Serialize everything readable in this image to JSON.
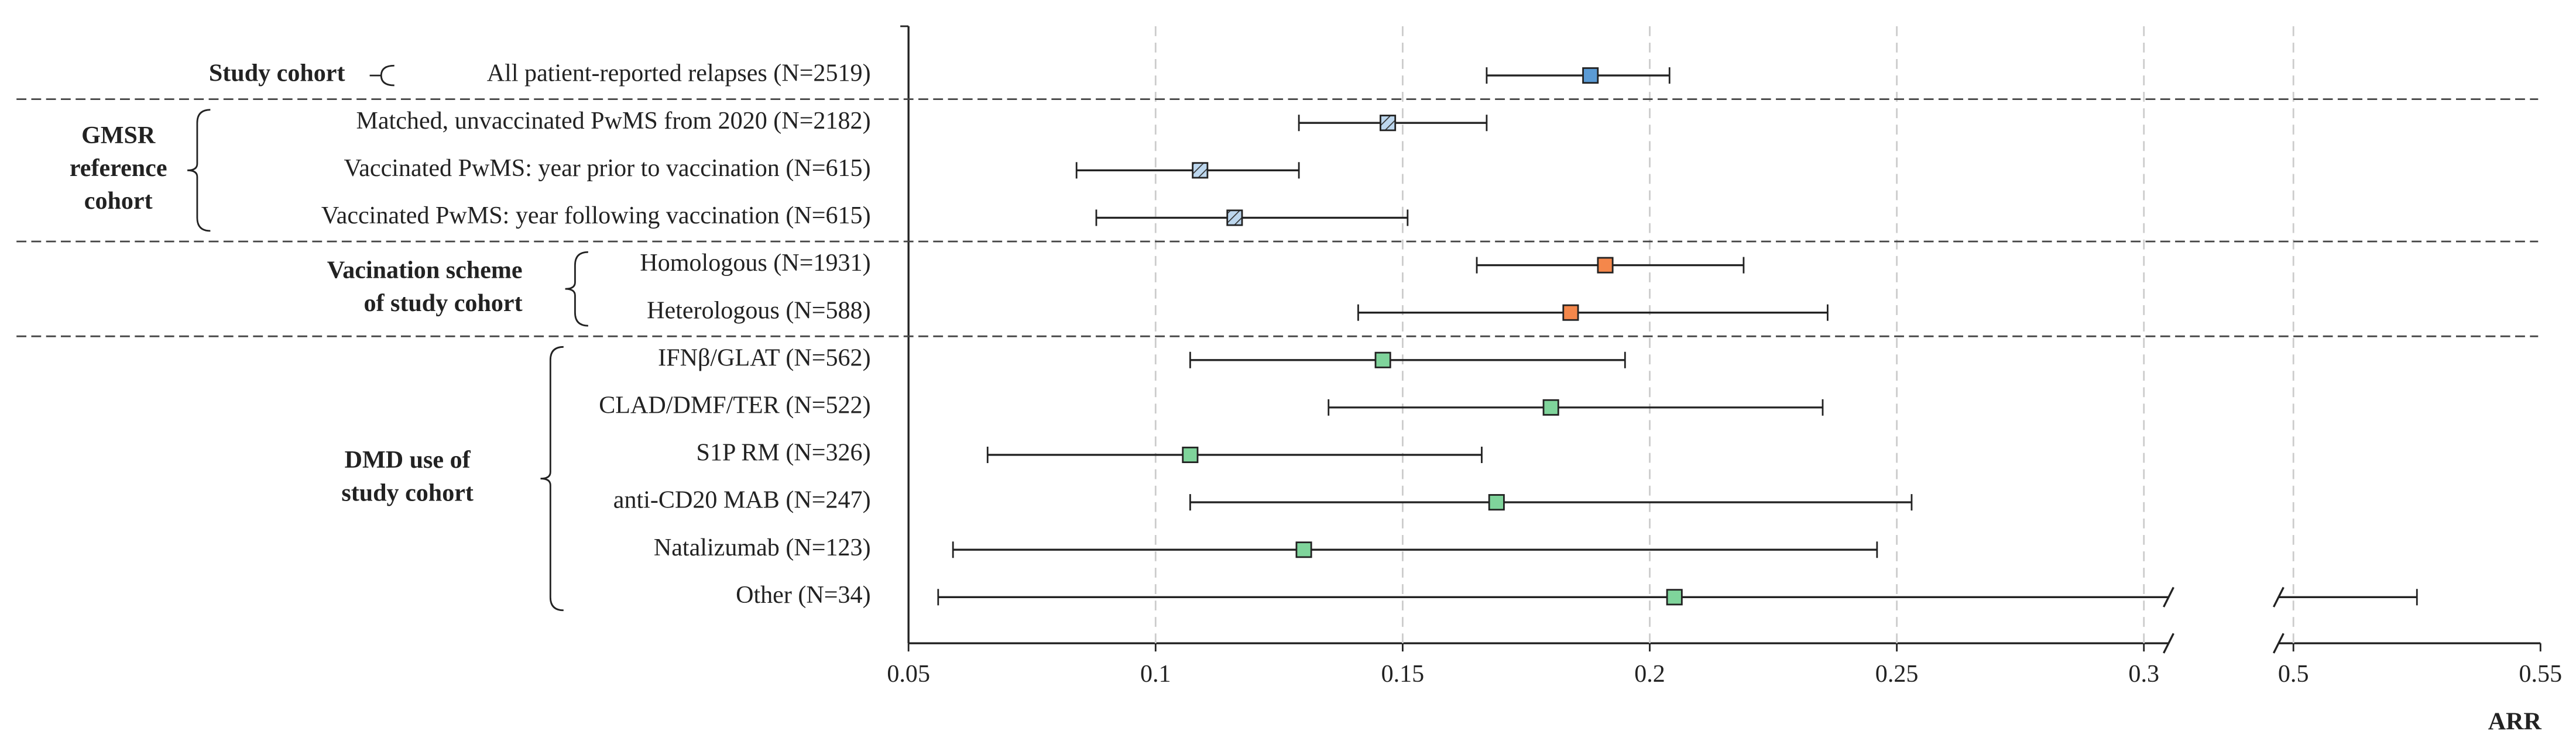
{
  "chart_data": {
    "type": "forest",
    "xlabel": "ARR",
    "xlim": [
      0.05,
      0.55
    ],
    "x_break": [
      0.305,
      0.497
    ],
    "xticks": [
      0.05,
      0.1,
      0.15,
      0.2,
      0.25,
      0.3,
      0.5,
      0.55
    ],
    "grid": true,
    "groups": [
      {
        "label": [
          "Study cohort"
        ],
        "rows": [
          {
            "label": "All patient-reported relapses (N=2519)",
            "estimate": 0.188,
            "lower": 0.167,
            "upper": 0.204,
            "color": "#5b9bd5",
            "hatched": false
          }
        ]
      },
      {
        "label": [
          "GMSR",
          "reference",
          "cohort"
        ],
        "rows": [
          {
            "label": "Matched, unvaccinated PwMS from 2020 (N=2182)",
            "estimate": 0.147,
            "lower": 0.129,
            "upper": 0.167,
            "color": "#bdd7ee",
            "hatched": true
          },
          {
            "label": "Vaccinated PwMS: year prior to vaccination (N=615)",
            "estimate": 0.109,
            "lower": 0.084,
            "upper": 0.129,
            "color": "#bdd7ee",
            "hatched": true
          },
          {
            "label": "Vaccinated PwMS: year following vaccination (N=615)",
            "estimate": 0.116,
            "lower": 0.088,
            "upper": 0.151,
            "color": "#bdd7ee",
            "hatched": true
          }
        ]
      },
      {
        "label": [
          "Vacination scheme",
          "of study cohort"
        ],
        "rows": [
          {
            "label": "Homologous (N=1931)",
            "estimate": 0.191,
            "lower": 0.165,
            "upper": 0.219,
            "color": "#f4874b",
            "hatched": false
          },
          {
            "label": "Heterologous (N=588)",
            "estimate": 0.184,
            "lower": 0.141,
            "upper": 0.236,
            "color": "#f4874b",
            "hatched": false
          }
        ]
      },
      {
        "label": [
          "DMD use of",
          "study cohort"
        ],
        "rows": [
          {
            "label": "IFNβ/GLAT (N=562)",
            "estimate": 0.146,
            "lower": 0.107,
            "upper": 0.195,
            "color": "#7fd49b",
            "hatched": false
          },
          {
            "label": "CLAD/DMF/TER (N=522)",
            "estimate": 0.18,
            "lower": 0.135,
            "upper": 0.235,
            "color": "#7fd49b",
            "hatched": false
          },
          {
            "label": "S1P RM (N=326)",
            "estimate": 0.107,
            "lower": 0.066,
            "upper": 0.166,
            "color": "#7fd49b",
            "hatched": false
          },
          {
            "label": "anti-CD20 MAB (N=247)",
            "estimate": 0.169,
            "lower": 0.107,
            "upper": 0.253,
            "color": "#7fd49b",
            "hatched": false
          },
          {
            "label": "Natalizumab (N=123)",
            "estimate": 0.13,
            "lower": 0.059,
            "upper": 0.246,
            "color": "#7fd49b",
            "hatched": false
          },
          {
            "label": "Other (N=34)",
            "estimate": 0.205,
            "lower": 0.056,
            "upper": 0.525,
            "color": "#7fd49b",
            "hatched": false
          }
        ]
      }
    ]
  }
}
